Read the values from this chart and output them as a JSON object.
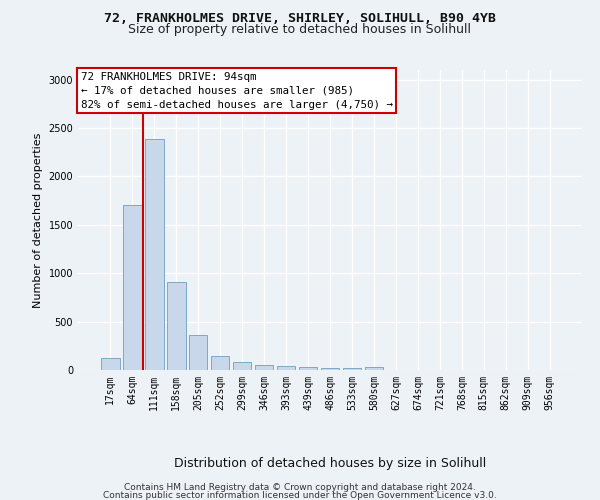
{
  "title_line1": "72, FRANKHOLMES DRIVE, SHIRLEY, SOLIHULL, B90 4YB",
  "title_line2": "Size of property relative to detached houses in Solihull",
  "xlabel": "Distribution of detached houses by size in Solihull",
  "ylabel": "Number of detached properties",
  "footer_line1": "Contains HM Land Registry data © Crown copyright and database right 2024.",
  "footer_line2": "Contains public sector information licensed under the Open Government Licence v3.0.",
  "annotation_line1": "72 FRANKHOLMES DRIVE: 94sqm",
  "annotation_line2": "← 17% of detached houses are smaller (985)",
  "annotation_line3": "82% of semi-detached houses are larger (4,750) →",
  "bar_labels": [
    "17sqm",
    "64sqm",
    "111sqm",
    "158sqm",
    "205sqm",
    "252sqm",
    "299sqm",
    "346sqm",
    "393sqm",
    "439sqm",
    "486sqm",
    "533sqm",
    "580sqm",
    "627sqm",
    "674sqm",
    "721sqm",
    "768sqm",
    "815sqm",
    "862sqm",
    "909sqm",
    "956sqm"
  ],
  "bar_values": [
    120,
    1700,
    2390,
    910,
    360,
    145,
    80,
    55,
    40,
    30,
    25,
    25,
    30,
    5,
    5,
    3,
    3,
    2,
    2,
    2,
    2
  ],
  "bar_color": "#c8d8ea",
  "bar_edge_color": "#7aaac8",
  "bar_edge_width": 0.7,
  "red_line_x": 1.5,
  "ylim": [
    0,
    3100
  ],
  "yticks": [
    0,
    500,
    1000,
    1500,
    2000,
    2500,
    3000
  ],
  "bg_color": "#edf2f7",
  "plot_bg_color": "#edf2f7",
  "grid_color": "#ffffff",
  "annotation_box_facecolor": "#ffffff",
  "annotation_box_edgecolor": "#cc0000",
  "red_line_color": "#cc0000",
  "title1_fontsize": 9.5,
  "title2_fontsize": 9,
  "ylabel_fontsize": 8,
  "xlabel_fontsize": 9,
  "tick_fontsize": 7,
  "annotation_fontsize": 7.8,
  "footer_fontsize": 6.5
}
